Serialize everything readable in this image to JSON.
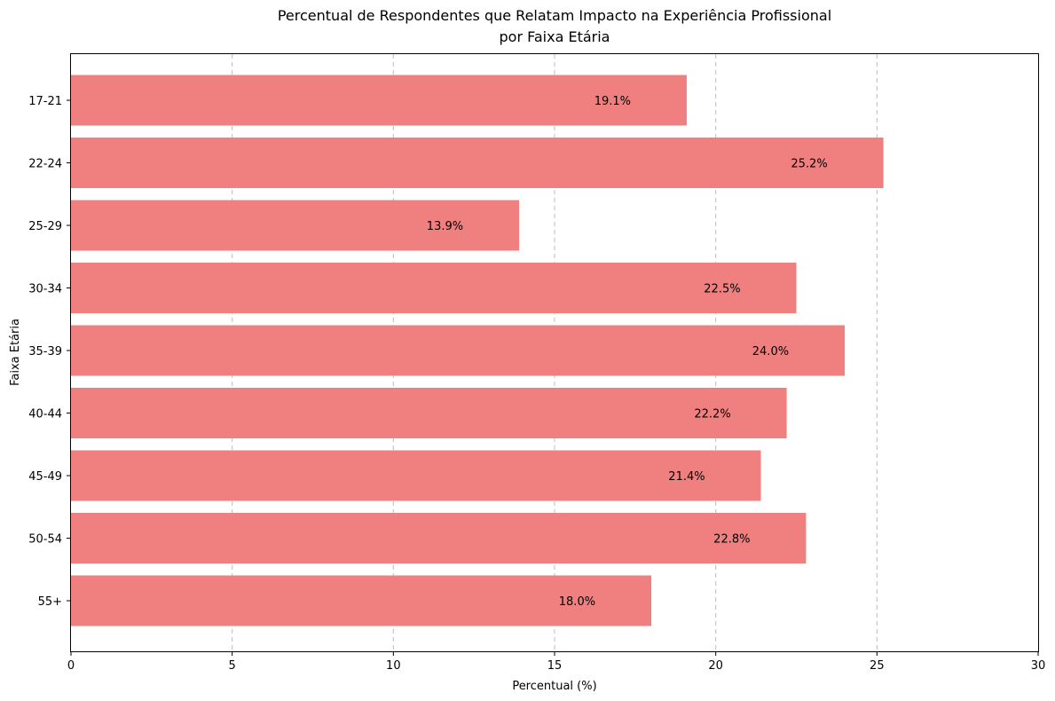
{
  "chart_data": {
    "type": "bar",
    "orientation": "horizontal",
    "title_lines": [
      "Percentual de Respondentes que Relatam Impacto na Experiência Profissional",
      "por Faixa Etária"
    ],
    "xlabel": "Percentual (%)",
    "ylabel": "Faixa Etária",
    "xlim": [
      0,
      30
    ],
    "xticks": [
      0,
      5,
      10,
      15,
      20,
      25,
      30
    ],
    "grid": "x, dashed",
    "legend": "none",
    "bar_color": "#f08080",
    "categories": [
      "17-21",
      "22-24",
      "25-29",
      "30-34",
      "35-39",
      "40-44",
      "45-49",
      "50-54",
      "55+"
    ],
    "values": [
      19.1,
      25.2,
      13.9,
      22.5,
      24.0,
      22.2,
      21.4,
      22.8,
      18.0
    ],
    "data_labels": [
      "19.1%",
      "25.2%",
      "13.9%",
      "22.5%",
      "24.0%",
      "22.2%",
      "21.4%",
      "22.8%",
      "18.0%"
    ]
  }
}
